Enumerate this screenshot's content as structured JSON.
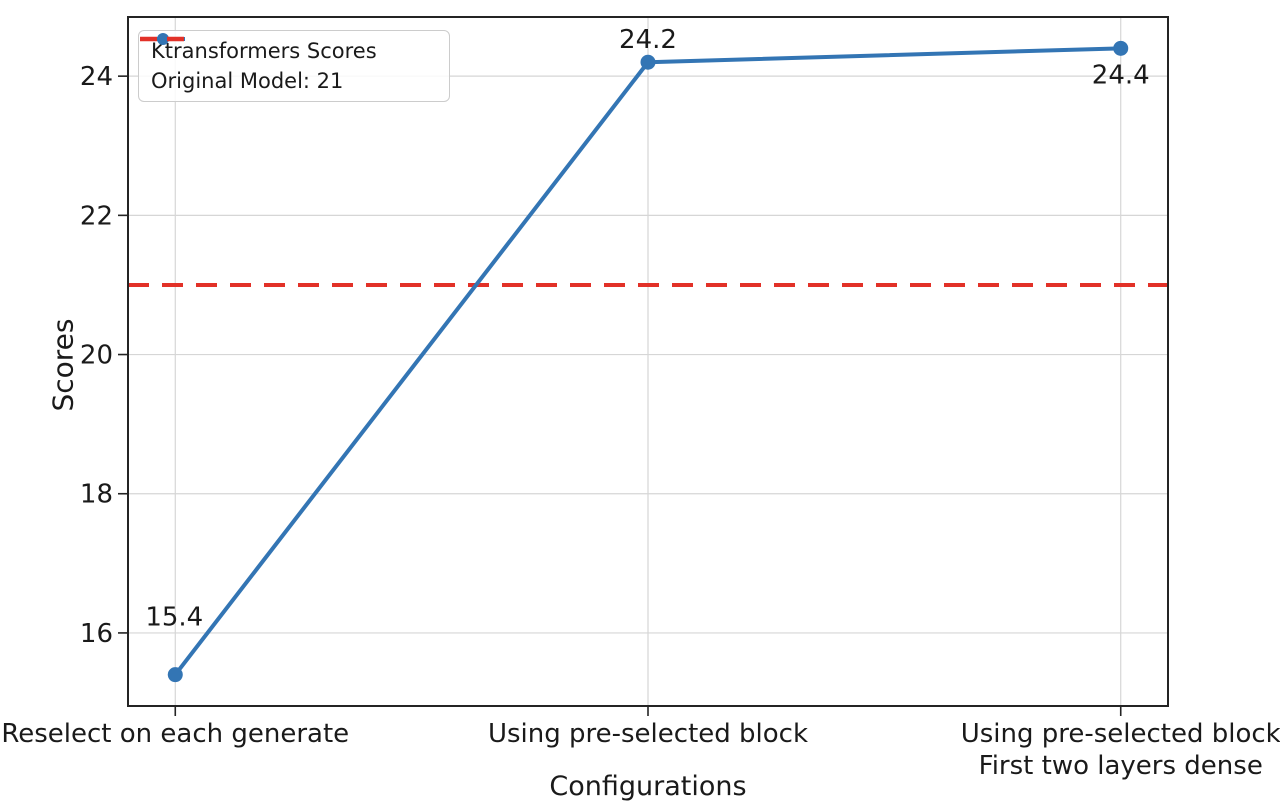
{
  "chart_data": {
    "type": "line",
    "title": "",
    "xlabel": "Configurations",
    "ylabel": "Scores",
    "categories": [
      [
        "Reselect on each generate"
      ],
      [
        "Using pre-selected block"
      ],
      [
        "Using pre-selected block",
        "First two layers dense"
      ]
    ],
    "series": [
      {
        "name": "Ktransformers Scores",
        "values": [
          15.4,
          24.2,
          24.4
        ],
        "color": "#3375b4",
        "marker": "circle",
        "line_style": "solid"
      }
    ],
    "reference_line": {
      "label": "Original Model: 21",
      "value": 21,
      "color": "#e23128",
      "line_style": "dashed"
    },
    "data_labels": [
      "15.4",
      "24.2",
      "24.4"
    ],
    "yticks": [
      "16",
      "18",
      "20",
      "22",
      "24"
    ],
    "ytick_values": [
      16,
      18,
      20,
      22,
      24
    ],
    "ylim": [
      14.95,
      24.85
    ],
    "grid": true,
    "grid_color": "#d6d6d6",
    "axis_color": "#242424",
    "text_color": "#1a1a1a",
    "legend_position": "upper left",
    "legend": [
      "Ktransformers Scores",
      "Original Model: 21"
    ]
  }
}
